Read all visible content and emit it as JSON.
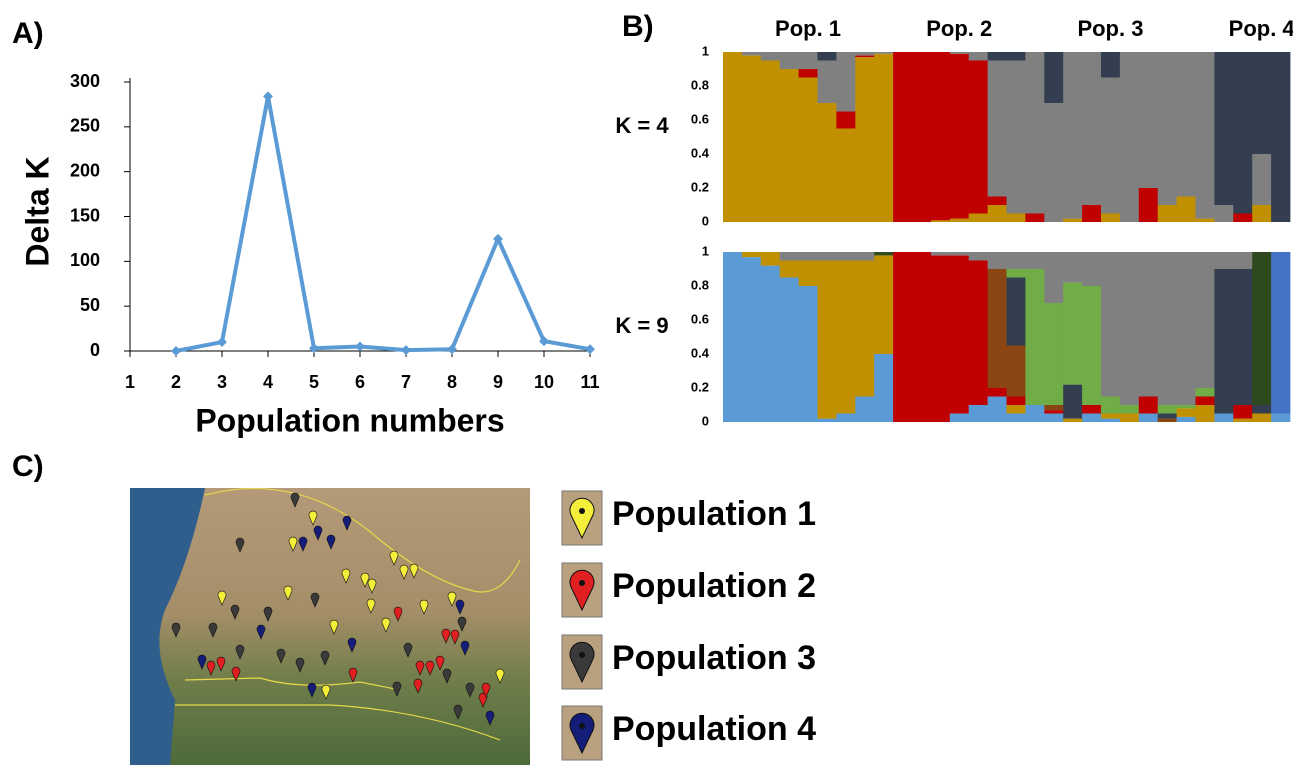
{
  "panels": [
    "A)",
    "B)",
    "C)"
  ],
  "chart_data": [
    {
      "type": "line",
      "x": [
        2,
        3,
        4,
        5,
        6,
        7,
        8,
        9,
        10,
        11
      ],
      "values": [
        0,
        10,
        284,
        3,
        5,
        1,
        2,
        125,
        11,
        2
      ],
      "color": "#5b9bd5",
      "xlabel": "Population numbers",
      "ylabel": "Delta K",
      "xlim": [
        1,
        11
      ],
      "xticks": [
        1,
        2,
        3,
        4,
        5,
        6,
        7,
        8,
        9,
        10,
        11
      ],
      "ylim": [
        0,
        300
      ],
      "yticks": [
        0,
        50,
        100,
        150,
        200,
        250,
        300
      ]
    },
    {
      "type": "stacked-bar",
      "title": "K = 4",
      "categories": [
        null,
        null,
        null,
        null,
        "Pop. 1",
        null,
        null,
        null,
        null,
        null,
        null,
        null,
        "Pop. 2",
        null,
        null,
        null,
        null,
        null,
        null,
        null,
        "Pop. 3",
        null,
        null,
        null,
        null,
        null,
        null,
        null,
        "Pop. 4",
        null
      ],
      "ylim": [
        0,
        1
      ],
      "yticks": [
        0,
        0.2,
        0.4,
        0.6,
        0.8,
        1
      ],
      "series": [
        {
          "color": "#c09000",
          "values": [
            1,
            0.98,
            0.95,
            0.9,
            0.85,
            0.7,
            0.55,
            0.97,
            0.99,
            0,
            0,
            0.01,
            0.02,
            0.05,
            0.1,
            0.05,
            0,
            0,
            0.02,
            0,
            0.05,
            0,
            0,
            0.1,
            0.15,
            0.02,
            0,
            0,
            0.1,
            0
          ]
        },
        {
          "color": "#c00000",
          "values": [
            0,
            0,
            0,
            0,
            0.05,
            0,
            0.1,
            0.01,
            0,
            1,
            1,
            0.99,
            0.97,
            0.9,
            0.05,
            0,
            0.05,
            0,
            0,
            0.1,
            0,
            0,
            0.2,
            0,
            0,
            0,
            0,
            0.05,
            0,
            0
          ]
        },
        {
          "color": "#808080",
          "values": [
            0,
            0.02,
            0.05,
            0.1,
            0.1,
            0.25,
            0.35,
            0.02,
            0.01,
            0,
            0,
            0,
            0.01,
            0.05,
            0.8,
            0.9,
            0.95,
            0.7,
            0.98,
            0.9,
            0.8,
            1,
            0.8,
            0.9,
            0.85,
            0.98,
            0.1,
            0,
            0.3,
            0
          ]
        },
        {
          "color": "#333f50",
          "values": [
            0,
            0,
            0,
            0,
            0,
            0.05,
            0,
            0,
            0,
            0,
            0,
            0,
            0,
            0,
            0.05,
            0.05,
            0,
            0.3,
            0,
            0,
            0.15,
            0,
            0,
            0,
            0,
            0,
            0.9,
            0.95,
            0.6,
            1
          ]
        }
      ]
    },
    {
      "type": "stacked-bar",
      "title": "K = 9",
      "categories": [
        null,
        null,
        null,
        null,
        null,
        null,
        null,
        null,
        null,
        null,
        null,
        null,
        null,
        null,
        null,
        null,
        null,
        null,
        null,
        null,
        null,
        null,
        null,
        null,
        null,
        null,
        null,
        null,
        null,
        null
      ],
      "ylim": [
        0,
        1
      ],
      "yticks": [
        0,
        0.2,
        0.4,
        0.6,
        0.8,
        1
      ],
      "series": [
        {
          "color": "#5b9bd5",
          "values": [
            1,
            0.97,
            0.92,
            0.85,
            0.8,
            0.02,
            0.05,
            0.15,
            0.4,
            0,
            0,
            0,
            0.05,
            0.1,
            0.15,
            0.05,
            0.1,
            0.05,
            0,
            0.05,
            0.02,
            0,
            0.05,
            0,
            0.03,
            0,
            0.05,
            0,
            0,
            0.05
          ]
        },
        {
          "color": "#c09000",
          "values": [
            0,
            0.03,
            0.08,
            0.1,
            0.15,
            0.93,
            0.9,
            0.8,
            0.58,
            0,
            0,
            0,
            0,
            0,
            0,
            0.05,
            0,
            0,
            0.02,
            0,
            0.03,
            0.05,
            0,
            0,
            0.05,
            0.1,
            0,
            0.02,
            0.05,
            0
          ]
        },
        {
          "color": "#c00000",
          "values": [
            0,
            0,
            0,
            0,
            0,
            0,
            0,
            0,
            0,
            1,
            1,
            0.98,
            0.93,
            0.85,
            0.05,
            0.05,
            0,
            0.02,
            0,
            0.05,
            0,
            0,
            0.1,
            0,
            0,
            0.05,
            0,
            0.08,
            0,
            0
          ]
        },
        {
          "color": "#8b4513",
          "values": [
            0,
            0,
            0,
            0,
            0,
            0,
            0,
            0,
            0,
            0,
            0,
            0,
            0,
            0,
            0.7,
            0.3,
            0,
            0.03,
            0,
            0,
            0,
            0,
            0,
            0.02,
            0,
            0,
            0,
            0,
            0,
            0
          ]
        },
        {
          "color": "#333f50",
          "values": [
            0,
            0,
            0,
            0,
            0,
            0,
            0,
            0,
            0,
            0,
            0,
            0,
            0,
            0,
            0,
            0.4,
            0,
            0,
            0.2,
            0,
            0,
            0,
            0,
            0.03,
            0,
            0,
            0.85,
            0.8,
            0.05,
            0
          ]
        },
        {
          "color": "#70ad47",
          "values": [
            0,
            0,
            0,
            0,
            0,
            0,
            0,
            0,
            0,
            0,
            0,
            0,
            0,
            0,
            0,
            0.05,
            0.8,
            0.6,
            0.6,
            0.7,
            0.1,
            0.05,
            0,
            0.05,
            0.02,
            0.05,
            0,
            0,
            0,
            0
          ]
        },
        {
          "color": "#808080",
          "values": [
            0,
            0,
            0,
            0.05,
            0.05,
            0.05,
            0.05,
            0.05,
            0,
            0,
            0,
            0.02,
            0.02,
            0.05,
            0.1,
            0.1,
            0.1,
            0.3,
            0.18,
            0.2,
            0.85,
            0.9,
            0.85,
            0.9,
            0.9,
            0.8,
            0.1,
            0.1,
            0,
            0
          ]
        },
        {
          "color": "#2e4a1e",
          "values": [
            0,
            0,
            0,
            0,
            0,
            0,
            0,
            0,
            0.02,
            0,
            0,
            0,
            0,
            0,
            0,
            0,
            0,
            0,
            0,
            0,
            0,
            0,
            0,
            0,
            0,
            0,
            0,
            0,
            0.9,
            0
          ]
        },
        {
          "color": "#4472c4",
          "values": [
            0,
            0,
            0,
            0,
            0,
            0,
            0,
            0,
            0,
            0,
            0,
            0,
            0,
            0,
            0,
            0,
            0,
            0,
            0,
            0,
            0,
            0,
            0,
            0,
            0,
            0,
            0,
            0,
            0,
            0.95
          ]
        }
      ]
    }
  ],
  "map": {
    "legend": [
      "Population 1",
      "Population 2",
      "Population 3",
      "Population 4"
    ]
  }
}
